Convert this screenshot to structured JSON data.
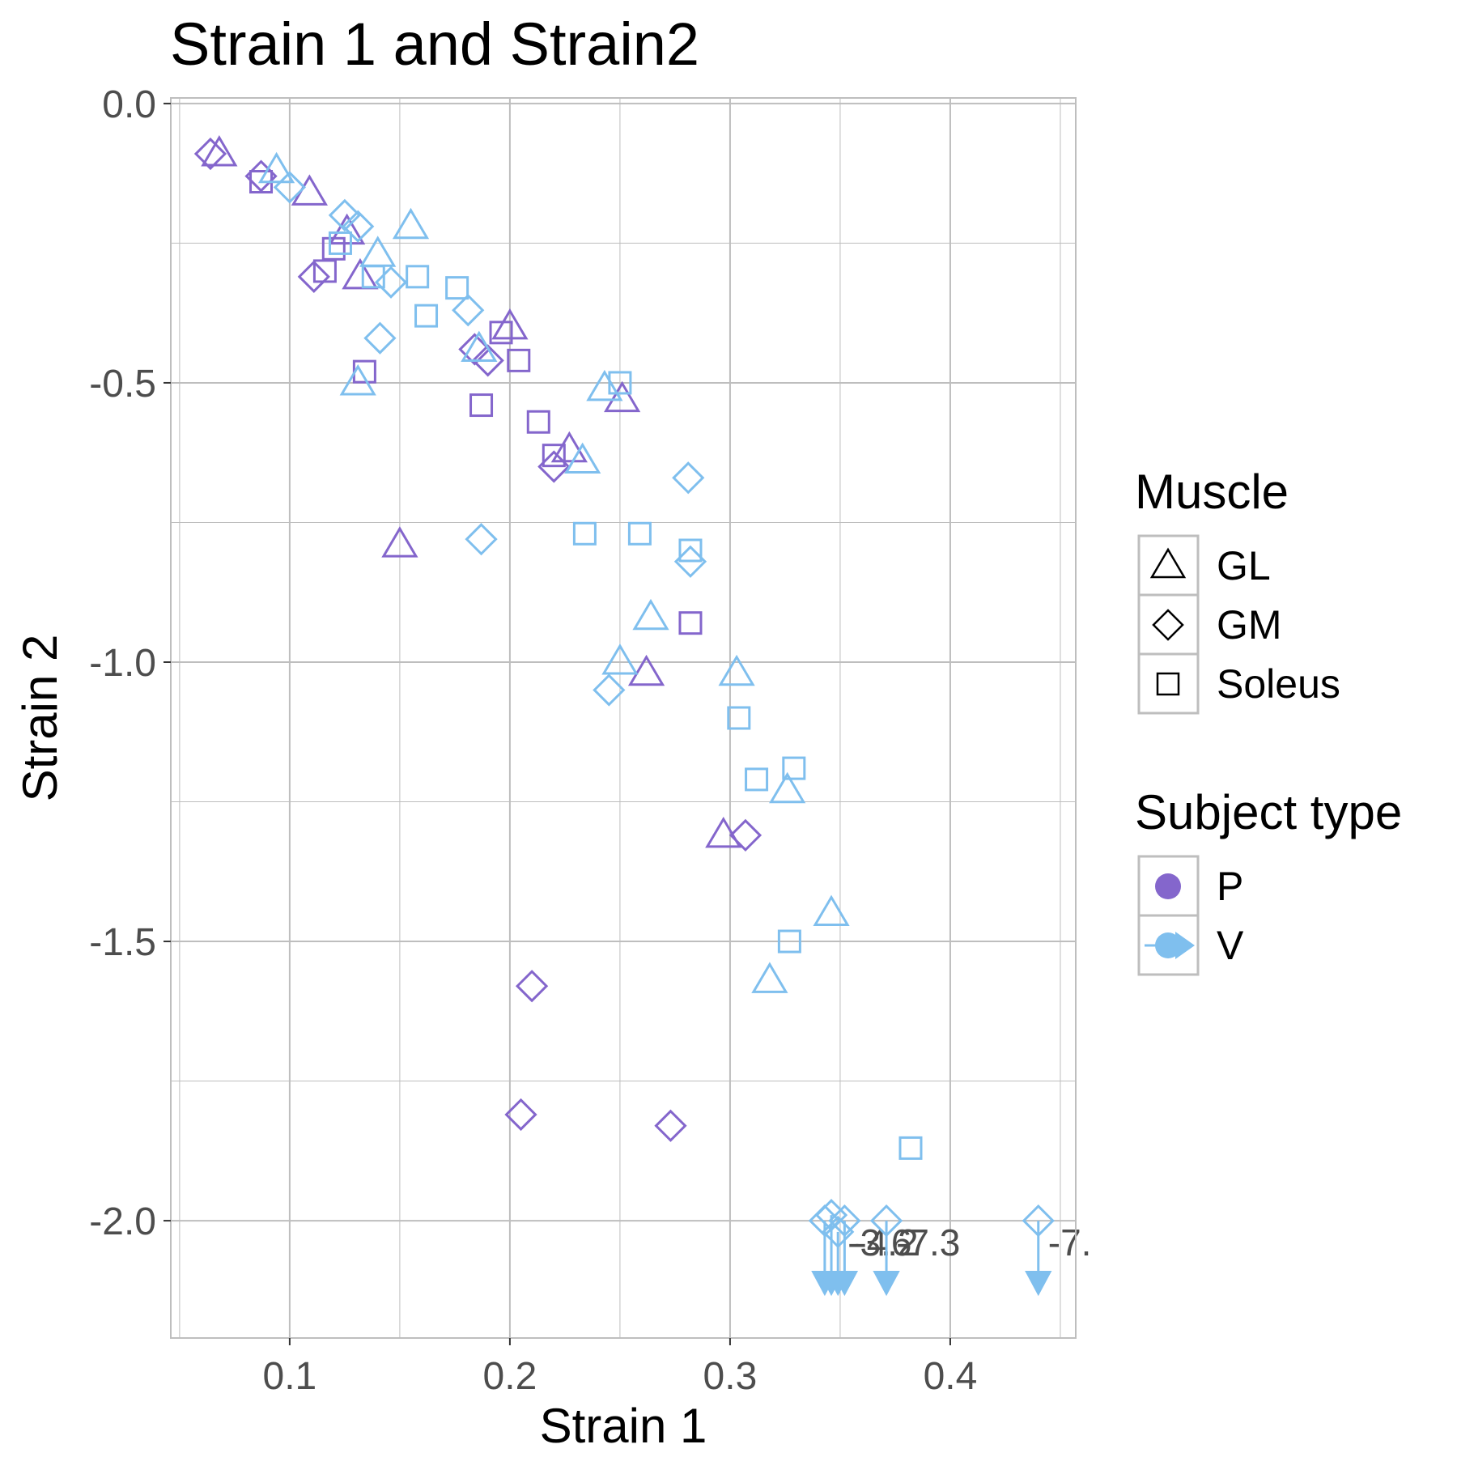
{
  "chart_data": {
    "type": "scatter",
    "title": "Strain 1 and Strain2",
    "xlabel": "Strain 1",
    "ylabel": "Strain 2",
    "xlim": [
      0.046,
      0.457
    ],
    "ylim": [
      -2.21,
      0.01
    ],
    "x_ticks": [
      0.1,
      0.2,
      0.3,
      0.4
    ],
    "x_tick_labels": [
      "0.1",
      "0.2",
      "0.3",
      "0.4"
    ],
    "y_ticks": [
      0.0,
      -0.5,
      -1.0,
      -1.5,
      -2.0
    ],
    "y_tick_labels": [
      "0.0",
      "-0.5",
      "-1.0",
      "-1.5",
      "-2.0"
    ],
    "grid": true,
    "legend_placement": "right",
    "colors": {
      "P": "#8466cc",
      "V": "#7fbfee",
      "grid": "#bebebe",
      "panel_border": "#bebebe",
      "text": "#4d4d4d"
    },
    "legends": [
      {
        "title": "Muscle",
        "entries": [
          {
            "label": "GL",
            "shape": "triangle"
          },
          {
            "label": "GM",
            "shape": "diamond"
          },
          {
            "label": "Soleus",
            "shape": "square"
          }
        ]
      },
      {
        "title": "Subject type",
        "entries": [
          {
            "label": "P",
            "key": "P"
          },
          {
            "label": "V",
            "key": "V"
          }
        ]
      }
    ],
    "points": [
      {
        "x": 0.064,
        "y": -0.09,
        "muscle": "GM",
        "subject": "P"
      },
      {
        "x": 0.068,
        "y": -0.09,
        "muscle": "GL",
        "subject": "P"
      },
      {
        "x": 0.087,
        "y": -0.13,
        "muscle": "GM",
        "subject": "P"
      },
      {
        "x": 0.087,
        "y": -0.14,
        "muscle": "Soleus",
        "subject": "P"
      },
      {
        "x": 0.109,
        "y": -0.16,
        "muscle": "GL",
        "subject": "P"
      },
      {
        "x": 0.126,
        "y": -0.23,
        "muscle": "GL",
        "subject": "P"
      },
      {
        "x": 0.12,
        "y": -0.26,
        "muscle": "Soleus",
        "subject": "P"
      },
      {
        "x": 0.116,
        "y": -0.3,
        "muscle": "Soleus",
        "subject": "P"
      },
      {
        "x": 0.111,
        "y": -0.31,
        "muscle": "GM",
        "subject": "P"
      },
      {
        "x": 0.132,
        "y": -0.31,
        "muscle": "GL",
        "subject": "P"
      },
      {
        "x": 0.134,
        "y": -0.48,
        "muscle": "Soleus",
        "subject": "P"
      },
      {
        "x": 0.196,
        "y": -0.41,
        "muscle": "Soleus",
        "subject": "P"
      },
      {
        "x": 0.2,
        "y": -0.4,
        "muscle": "GL",
        "subject": "P"
      },
      {
        "x": 0.184,
        "y": -0.44,
        "muscle": "GM",
        "subject": "P"
      },
      {
        "x": 0.19,
        "y": -0.46,
        "muscle": "GM",
        "subject": "P"
      },
      {
        "x": 0.204,
        "y": -0.46,
        "muscle": "Soleus",
        "subject": "P"
      },
      {
        "x": 0.187,
        "y": -0.54,
        "muscle": "Soleus",
        "subject": "P"
      },
      {
        "x": 0.251,
        "y": -0.53,
        "muscle": "GL",
        "subject": "P"
      },
      {
        "x": 0.213,
        "y": -0.57,
        "muscle": "Soleus",
        "subject": "P"
      },
      {
        "x": 0.227,
        "y": -0.62,
        "muscle": "GL",
        "subject": "P"
      },
      {
        "x": 0.22,
        "y": -0.63,
        "muscle": "Soleus",
        "subject": "P"
      },
      {
        "x": 0.22,
        "y": -0.65,
        "muscle": "GM",
        "subject": "P"
      },
      {
        "x": 0.15,
        "y": -0.79,
        "muscle": "GL",
        "subject": "P"
      },
      {
        "x": 0.282,
        "y": -0.93,
        "muscle": "Soleus",
        "subject": "P"
      },
      {
        "x": 0.262,
        "y": -1.02,
        "muscle": "GL",
        "subject": "P"
      },
      {
        "x": 0.297,
        "y": -1.31,
        "muscle": "GL",
        "subject": "P"
      },
      {
        "x": 0.307,
        "y": -1.31,
        "muscle": "GM",
        "subject": "P"
      },
      {
        "x": 0.21,
        "y": -1.58,
        "muscle": "GM",
        "subject": "P"
      },
      {
        "x": 0.205,
        "y": -1.81,
        "muscle": "GM",
        "subject": "P"
      },
      {
        "x": 0.273,
        "y": -1.83,
        "muscle": "GM",
        "subject": "P"
      },
      {
        "x": 0.094,
        "y": -0.12,
        "muscle": "GL",
        "subject": "V"
      },
      {
        "x": 0.1,
        "y": -0.15,
        "muscle": "GM",
        "subject": "V"
      },
      {
        "x": 0.125,
        "y": -0.2,
        "muscle": "GM",
        "subject": "V"
      },
      {
        "x": 0.131,
        "y": -0.22,
        "muscle": "GM",
        "subject": "V"
      },
      {
        "x": 0.123,
        "y": -0.25,
        "muscle": "Soleus",
        "subject": "V"
      },
      {
        "x": 0.155,
        "y": -0.22,
        "muscle": "GL",
        "subject": "V"
      },
      {
        "x": 0.14,
        "y": -0.27,
        "muscle": "GL",
        "subject": "V"
      },
      {
        "x": 0.138,
        "y": -0.31,
        "muscle": "Soleus",
        "subject": "V"
      },
      {
        "x": 0.146,
        "y": -0.32,
        "muscle": "GM",
        "subject": "V"
      },
      {
        "x": 0.158,
        "y": -0.31,
        "muscle": "Soleus",
        "subject": "V"
      },
      {
        "x": 0.162,
        "y": -0.38,
        "muscle": "Soleus",
        "subject": "V"
      },
      {
        "x": 0.176,
        "y": -0.33,
        "muscle": "Soleus",
        "subject": "V"
      },
      {
        "x": 0.181,
        "y": -0.37,
        "muscle": "GM",
        "subject": "V"
      },
      {
        "x": 0.141,
        "y": -0.42,
        "muscle": "GM",
        "subject": "V"
      },
      {
        "x": 0.131,
        "y": -0.5,
        "muscle": "GL",
        "subject": "V"
      },
      {
        "x": 0.186,
        "y": -0.44,
        "muscle": "GL",
        "subject": "V"
      },
      {
        "x": 0.25,
        "y": -0.5,
        "muscle": "Soleus",
        "subject": "V"
      },
      {
        "x": 0.243,
        "y": -0.51,
        "muscle": "GL",
        "subject": "V"
      },
      {
        "x": 0.233,
        "y": -0.64,
        "muscle": "GL",
        "subject": "V"
      },
      {
        "x": 0.281,
        "y": -0.67,
        "muscle": "GM",
        "subject": "V"
      },
      {
        "x": 0.234,
        "y": -0.77,
        "muscle": "Soleus",
        "subject": "V"
      },
      {
        "x": 0.259,
        "y": -0.77,
        "muscle": "Soleus",
        "subject": "V"
      },
      {
        "x": 0.187,
        "y": -0.78,
        "muscle": "GM",
        "subject": "V"
      },
      {
        "x": 0.282,
        "y": -0.8,
        "muscle": "Soleus",
        "subject": "V"
      },
      {
        "x": 0.282,
        "y": -0.82,
        "muscle": "GM",
        "subject": "V"
      },
      {
        "x": 0.264,
        "y": -0.92,
        "muscle": "GL",
        "subject": "V"
      },
      {
        "x": 0.25,
        "y": -1.0,
        "muscle": "GL",
        "subject": "V"
      },
      {
        "x": 0.245,
        "y": -1.05,
        "muscle": "GM",
        "subject": "V"
      },
      {
        "x": 0.303,
        "y": -1.02,
        "muscle": "GL",
        "subject": "V"
      },
      {
        "x": 0.304,
        "y": -1.1,
        "muscle": "Soleus",
        "subject": "V"
      },
      {
        "x": 0.312,
        "y": -1.21,
        "muscle": "Soleus",
        "subject": "V"
      },
      {
        "x": 0.329,
        "y": -1.19,
        "muscle": "Soleus",
        "subject": "V"
      },
      {
        "x": 0.326,
        "y": -1.23,
        "muscle": "GL",
        "subject": "V"
      },
      {
        "x": 0.346,
        "y": -1.45,
        "muscle": "GL",
        "subject": "V"
      },
      {
        "x": 0.327,
        "y": -1.5,
        "muscle": "Soleus",
        "subject": "V"
      },
      {
        "x": 0.318,
        "y": -1.57,
        "muscle": "GL",
        "subject": "V"
      },
      {
        "x": 0.382,
        "y": -1.87,
        "muscle": "Soleus",
        "subject": "V"
      }
    ],
    "censored": [
      {
        "x": 0.343,
        "y": -2.0,
        "muscle": "GM",
        "subject": "V",
        "label": ""
      },
      {
        "x": 0.346,
        "y": -1.99,
        "muscle": "GM",
        "subject": "V",
        "label": ""
      },
      {
        "x": 0.349,
        "y": -2.02,
        "muscle": "GM",
        "subject": "V",
        "label": "-3.6"
      },
      {
        "x": 0.352,
        "y": -2.0,
        "muscle": "GM",
        "subject": "V",
        "label": "-4.2"
      },
      {
        "x": 0.371,
        "y": -2.0,
        "muscle": "GM",
        "subject": "V",
        "label": "-7.3"
      },
      {
        "x": 0.44,
        "y": -2.0,
        "muscle": "GM",
        "subject": "V",
        "label": "-7."
      }
    ]
  }
}
